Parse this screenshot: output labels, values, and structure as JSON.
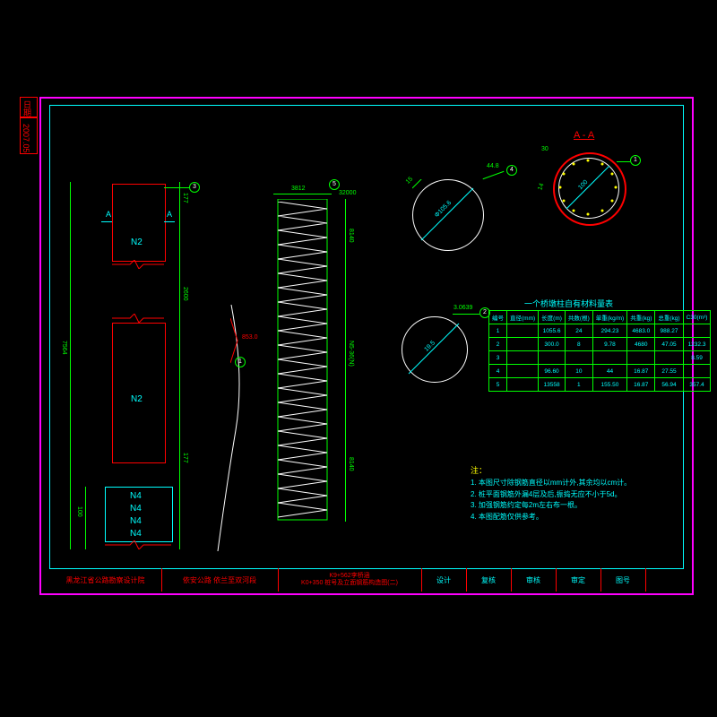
{
  "side": {
    "date_label": "日期",
    "date_value": "2007.05"
  },
  "title_strip": {
    "cells": [
      "黑龙江省公路勘察设计院",
      "依安公路  依兰至双河段",
      "K9+562李桥涵\nK0+350 桩号及立面钢筋构造图(二)",
      "设计",
      "复核",
      "审核",
      "审定",
      "图号"
    ]
  },
  "elevation": {
    "labels": [
      "N2",
      "N2",
      "N4",
      "N4",
      "N4",
      "N4"
    ],
    "section_a_top": "A",
    "section_a_bot": "A",
    "dim_total": "7564",
    "dim_upper": "177",
    "dim_lower": "177",
    "dim_bottom": "100",
    "dim_mid": "2600"
  },
  "spiral": {
    "top_dim": "3812",
    "height_dim": "8140",
    "height_dim2": "8140",
    "spacing_label": "N5-36(N)",
    "count_top": "32000"
  },
  "section_aa": {
    "title": "A - A",
    "dim": "100"
  },
  "details": {
    "d1": "44.8",
    "d4": "4",
    "d2_dim": "3.0639",
    "d2_num": "2",
    "d2_len": "19.5",
    "d1_num": "1"
  },
  "curve_label": "1",
  "table": {
    "title": "一个桥墩柱自有材料量表",
    "headers": [
      "编号",
      "直径(mm)",
      "长度(m)",
      "共数(根)",
      "单重(kg/m)",
      "共重(kg)",
      "总重(kg)",
      "C30(m³)"
    ],
    "rows": [
      [
        "1",
        "",
        "1055.6",
        "24",
        "294.23",
        "4683.0",
        "988.27",
        ""
      ],
      [
        "2",
        "",
        "300.0",
        "8",
        "9.78",
        "4680",
        "47.05",
        "1232.3"
      ],
      [
        "3",
        "",
        "",
        "",
        "",
        "",
        "",
        "8.59"
      ],
      [
        "4",
        "",
        "96.60",
        "10",
        "44",
        "16.87",
        "27.55",
        ""
      ],
      [
        "5",
        "",
        "13558",
        "1",
        "155.50",
        "16.87",
        "56.94",
        "357.4"
      ]
    ]
  },
  "notes": {
    "title": "注：",
    "items": [
      "1. 本图尺寸除钢筋直径以mm计外,其余均以cm计。",
      "2. 桩平面钢筋外漏4层及后,振捣无应不小于5d。",
      "3. 加强钢筋约定每2m左右布一根。",
      "4. 本图配筋仅供参考。"
    ]
  }
}
